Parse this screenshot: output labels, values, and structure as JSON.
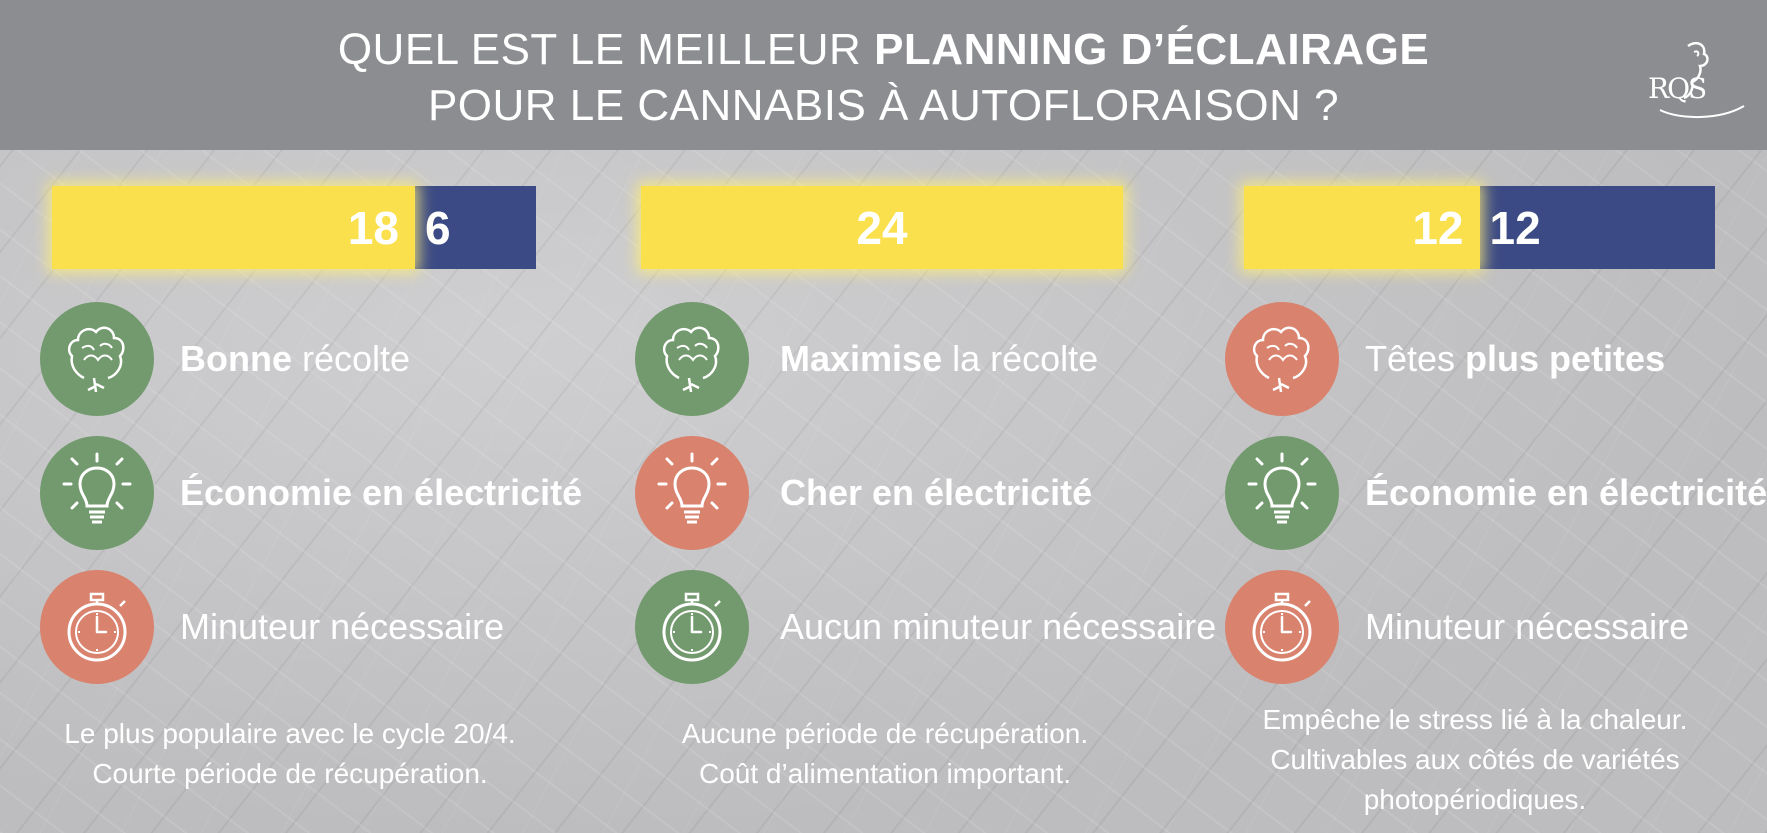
{
  "title": {
    "line1_normal": "QUEL EST LE MEILLEUR ",
    "line1_bold": "PLANNING D’ÉCLAIRAGE",
    "line2": "POUR LE CANNABIS À AUTOFLORAISON ?"
  },
  "logo": {
    "text": "RQS"
  },
  "colors": {
    "day": "#fbe04e",
    "night": "#3b4a85",
    "good": "#739a6e",
    "bad": "#d9826e",
    "header": "#8c8d90"
  },
  "columns": [
    {
      "schedule": {
        "light_hours": 18,
        "dark_hours": 6,
        "light_label": "18",
        "dark_label": "6"
      },
      "items": [
        {
          "icon": "bud-icon",
          "status": "good",
          "bold": "Bonne",
          "text": " récolte"
        },
        {
          "icon": "lightbulb-icon",
          "status": "good",
          "bold": "Économie en électricité",
          "text": ""
        },
        {
          "icon": "stopwatch-icon",
          "status": "bad",
          "bold": "",
          "text": "Minuteur nécessaire"
        }
      ],
      "note": [
        "Le plus populaire avec le cycle 20/4.",
        "Courte période de récupération."
      ]
    },
    {
      "schedule": {
        "light_hours": 24,
        "dark_hours": 0,
        "light_label": "24",
        "dark_label": ""
      },
      "items": [
        {
          "icon": "bud-icon",
          "status": "good",
          "bold": "Maximise",
          "text": " la récolte"
        },
        {
          "icon": "lightbulb-icon",
          "status": "bad",
          "bold": "Cher en électricité",
          "text": ""
        },
        {
          "icon": "stopwatch-icon",
          "status": "good",
          "bold": "",
          "text": "Aucun minuteur nécessaire"
        }
      ],
      "note": [
        "Aucune période de récupération.",
        "Coût d’alimentation important."
      ]
    },
    {
      "schedule": {
        "light_hours": 12,
        "dark_hours": 12,
        "light_label": "12",
        "dark_label": "12"
      },
      "items": [
        {
          "icon": "bud-icon",
          "status": "bad",
          "bold": "",
          "text": "Têtes ",
          "bold_after": "plus petites"
        },
        {
          "icon": "lightbulb-icon",
          "status": "good",
          "bold": "Économie en électricité",
          "text": ""
        },
        {
          "icon": "stopwatch-icon",
          "status": "bad",
          "bold": "",
          "text": "Minuteur nécessaire"
        }
      ],
      "note": [
        "Empêche le stress lié à la chaleur.",
        "Cultivables aux côtés de variétés",
        "photopériodiques."
      ]
    }
  ]
}
